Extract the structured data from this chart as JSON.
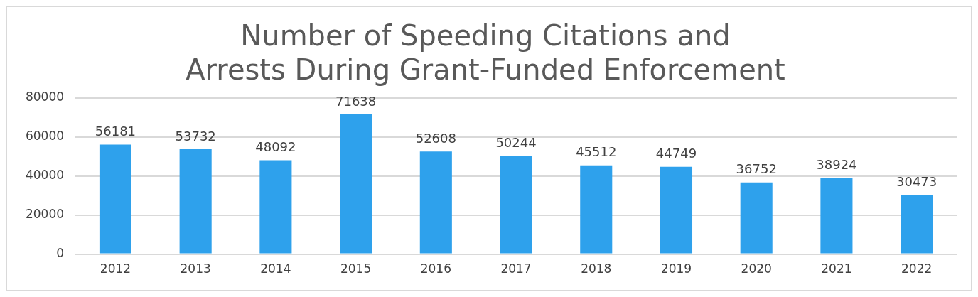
{
  "chart_data": {
    "type": "bar",
    "title": "Number of Speeding Citations and Arrests During Grant-Funded Enforcement",
    "categories": [
      "2012",
      "2013",
      "2014",
      "2015",
      "2016",
      "2017",
      "2018",
      "2019",
      "2020",
      "2021",
      "2022"
    ],
    "values": [
      56181,
      53732,
      48092,
      71638,
      52608,
      50244,
      45512,
      44749,
      36752,
      38924,
      30473
    ],
    "color": "#2ea1ec",
    "ylim": [
      0,
      80000
    ],
    "yticks": [
      0,
      20000,
      40000,
      60000,
      80000
    ],
    "grid": "y",
    "data_labels": true
  }
}
